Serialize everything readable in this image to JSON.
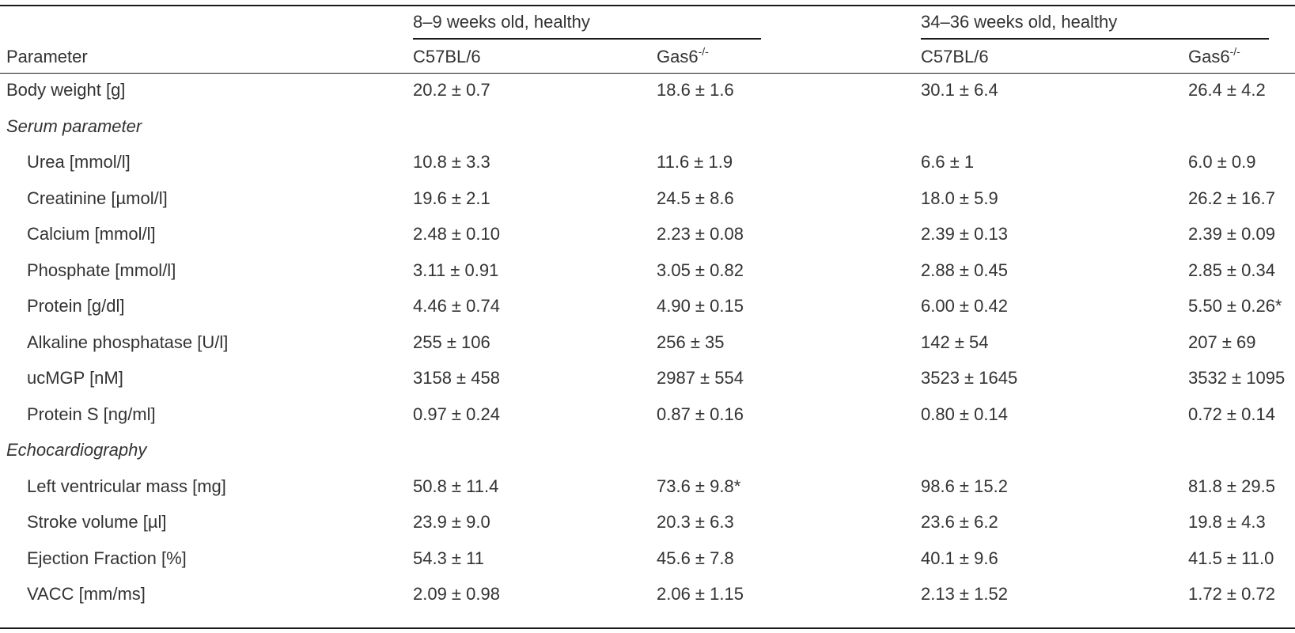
{
  "table": {
    "groups": [
      "8–9 weeks old, healthy",
      "34–36 weeks old, healthy"
    ],
    "param_header": "Parameter",
    "strains": [
      {
        "name": "C57BL/6",
        "sup": ""
      },
      {
        "name": "Gas6",
        "sup": "-/-"
      },
      {
        "name": "C57BL/6",
        "sup": ""
      },
      {
        "name": "Gas6",
        "sup": "-/-"
      }
    ],
    "rows": [
      {
        "kind": "data",
        "label": "Body weight [g]",
        "values": [
          "20.2 ± 0.7",
          "18.6 ± 1.6",
          "30.1 ± 6.4",
          "26.4 ± 4.2"
        ]
      },
      {
        "kind": "section",
        "label": "Serum parameter"
      },
      {
        "kind": "data",
        "label": "Urea [mmol/l]",
        "values": [
          "10.8 ± 3.3",
          "11.6 ± 1.9",
          "6.6 ± 1",
          "6.0 ± 0.9"
        ]
      },
      {
        "kind": "data",
        "label": "Creatinine [µmol/l]",
        "values": [
          "19.6 ± 2.1",
          "24.5 ± 8.6",
          "18.0 ± 5.9",
          "26.2 ± 16.7"
        ]
      },
      {
        "kind": "data",
        "label": "Calcium [mmol/l]",
        "values": [
          "2.48 ± 0.10",
          "2.23 ± 0.08",
          "2.39 ± 0.13",
          "2.39 ± 0.09"
        ]
      },
      {
        "kind": "data",
        "label": "Phosphate [mmol/l]",
        "values": [
          "3.11 ± 0.91",
          "3.05 ± 0.82",
          "2.88 ± 0.45",
          "2.85 ± 0.34"
        ]
      },
      {
        "kind": "data",
        "label": "Protein [g/dl]",
        "values": [
          "4.46 ± 0.74",
          "4.90 ± 0.15",
          "6.00 ± 0.42",
          "5.50 ± 0.26*"
        ]
      },
      {
        "kind": "data",
        "label": "Alkaline phosphatase [U/l]",
        "values": [
          "255 ± 106",
          "256 ± 35",
          "142 ± 54",
          "207 ± 69"
        ]
      },
      {
        "kind": "data",
        "label": "ucMGP [nM]",
        "values": [
          "3158 ± 458",
          "2987 ± 554",
          "3523 ± 1645",
          "3532 ± 1095"
        ]
      },
      {
        "kind": "data",
        "label": "Protein S [ng/ml]",
        "values": [
          "0.97 ± 0.24",
          "0.87 ± 0.16",
          "0.80 ± 0.14",
          "0.72 ± 0.14"
        ]
      },
      {
        "kind": "section",
        "label": "Echocardiography"
      },
      {
        "kind": "data",
        "label": "Left ventricular mass [mg]",
        "values": [
          "50.8 ± 11.4",
          "73.6 ± 9.8*",
          "98.6 ± 15.2",
          "81.8 ± 29.5"
        ]
      },
      {
        "kind": "data",
        "label": "Stroke volume [µl]",
        "values": [
          "23.9 ± 9.0",
          "20.3 ± 6.3",
          "23.6 ± 6.2",
          "19.8 ± 4.3"
        ]
      },
      {
        "kind": "data",
        "label": "Ejection Fraction [%]",
        "values": [
          "54.3 ± 11",
          "45.6 ± 7.8",
          "40.1 ± 9.6",
          "41.5 ± 11.0"
        ]
      },
      {
        "kind": "data",
        "label": "VACC [mm/ms]",
        "values": [
          "2.09 ± 0.98",
          "2.06 ± 1.15",
          "2.13 ± 1.52",
          "1.72 ± 0.72"
        ]
      }
    ]
  }
}
